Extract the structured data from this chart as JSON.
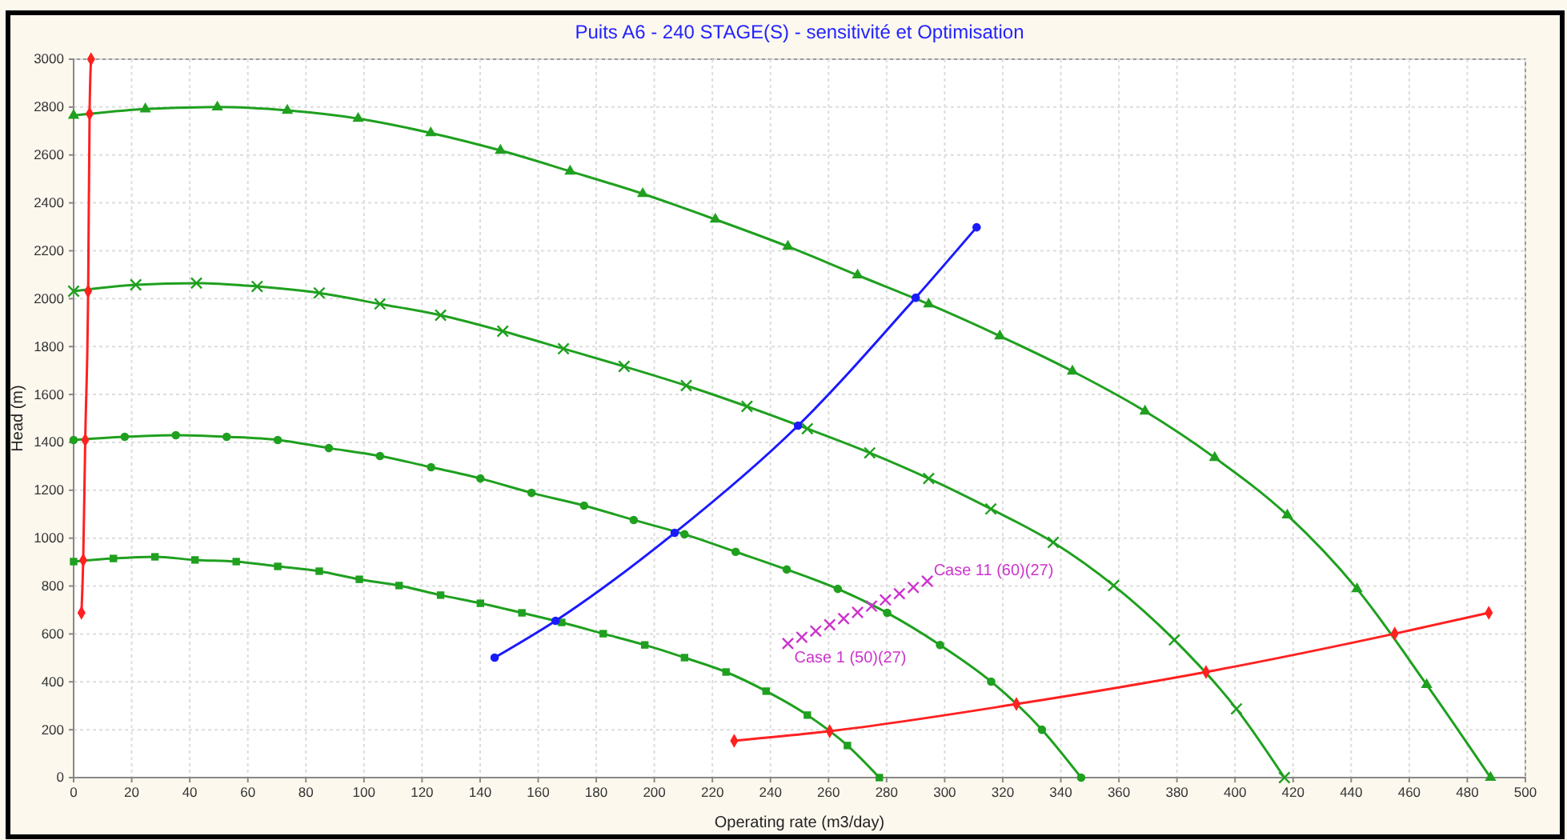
{
  "chart_data": {
    "type": "line",
    "title": "Puits A6 - 240 STAGE(S) - sensitivité et  Optimisation",
    "xlabel": "Operating rate   (m3/day)",
    "ylabel": "Head (m)",
    "xlim": [
      0,
      500
    ],
    "xticks": [
      0,
      20,
      40,
      60,
      80,
      100,
      120,
      140,
      160,
      180,
      200,
      220,
      240,
      260,
      280,
      300,
      320,
      340,
      360,
      380,
      400,
      420,
      440,
      460,
      480,
      500
    ],
    "ylim": [
      0,
      3000
    ],
    "yticks": [
      0,
      200,
      400,
      600,
      800,
      1000,
      1200,
      1400,
      1600,
      1800,
      2000,
      2200,
      2400,
      2600,
      2800,
      3000
    ],
    "grid": true,
    "series": [
      {
        "color": "#1fa01f",
        "marker": "triangle",
        "x": [
          0,
          24.7,
          49.5,
          73.6,
          98,
          123,
          147,
          171,
          196,
          221,
          246,
          270,
          294.5,
          319,
          344,
          369,
          393,
          418,
          442,
          466,
          488
        ],
        "values": [
          2765,
          2792,
          2800,
          2786,
          2752,
          2692,
          2619,
          2532,
          2438,
          2331,
          2218,
          2098,
          1977,
          1844,
          1697,
          1530,
          1336,
          1096,
          788,
          388,
          0
        ]
      },
      {
        "color": "#1fa01f",
        "marker": "cross",
        "x": [
          0,
          21.4,
          42.3,
          63.2,
          84.6,
          105.5,
          126.4,
          147.8,
          168.7,
          189.6,
          211,
          231.9,
          252.7,
          274.2,
          294.5,
          315.9,
          337.4,
          358.2,
          379.1,
          400.5,
          417
        ],
        "values": [
          2031,
          2058,
          2065,
          2051,
          2024,
          1978,
          1931,
          1864,
          1791,
          1717,
          1637,
          1550,
          1457,
          1356,
          1249,
          1122,
          982,
          802,
          575,
          287,
          0
        ]
      },
      {
        "color": "#1fa01f",
        "marker": "circle",
        "x": [
          0,
          17.6,
          35.2,
          52.7,
          70.3,
          87.9,
          105.5,
          123.1,
          140.1,
          157.7,
          175.8,
          192.9,
          210.4,
          228,
          245.6,
          263.2,
          280.2,
          298.4,
          316,
          333.5,
          347
        ],
        "values": [
          1410,
          1423,
          1430,
          1423,
          1410,
          1376,
          1343,
          1296,
          1249,
          1189,
          1136,
          1076,
          1016,
          943,
          869,
          788,
          688,
          554,
          401,
          200,
          0
        ]
      },
      {
        "color": "#1fa01f",
        "marker": "square",
        "x": [
          0,
          13.7,
          28,
          41.8,
          56,
          70.3,
          84.6,
          98.4,
          112.1,
          126.4,
          140.1,
          154.4,
          168.1,
          182.4,
          196.7,
          210.4,
          224.7,
          238.5,
          252.7,
          266.5,
          277.5
        ],
        "values": [
          902,
          915,
          922,
          909,
          902,
          882,
          862,
          828,
          802,
          762,
          728,
          688,
          648,
          601,
          554,
          501,
          441,
          361,
          261,
          134,
          0
        ]
      },
      {
        "color": "#1a1aff",
        "marker": "circle",
        "x": [
          145,
          166,
          207,
          249.5,
          290,
          311
        ],
        "values": [
          501,
          655,
          1022,
          1470,
          2004,
          2298
        ]
      },
      {
        "color": "#ff2020",
        "marker": "diamond",
        "x": [
          2.7,
          3.3,
          4,
          5,
          5.5,
          6
        ],
        "values": [
          688,
          908,
          1410,
          2031,
          2772,
          3000
        ]
      },
      {
        "color": "#ff2020",
        "marker": "diamond",
        "x": [
          227.5,
          260.4,
          324.7,
          390,
          455,
          487.4
        ],
        "values": [
          154,
          194,
          307,
          441,
          601,
          688
        ]
      },
      {
        "type": "scatter",
        "color": "#cc33cc",
        "marker": "cross",
        "x": [
          246,
          250.8,
          255.6,
          260.4,
          265.2,
          270,
          274.8,
          279.6,
          284.4,
          289.2,
          294
        ],
        "values": [
          560,
          586,
          612,
          638,
          664,
          690,
          716,
          742,
          768,
          794,
          820
        ]
      }
    ],
    "annotations": [
      {
        "text": "Case 1 (50)(27)",
        "x": 246,
        "y": 560
      },
      {
        "text": "Case 11 (60)(27)",
        "x": 294,
        "y": 820
      }
    ]
  }
}
